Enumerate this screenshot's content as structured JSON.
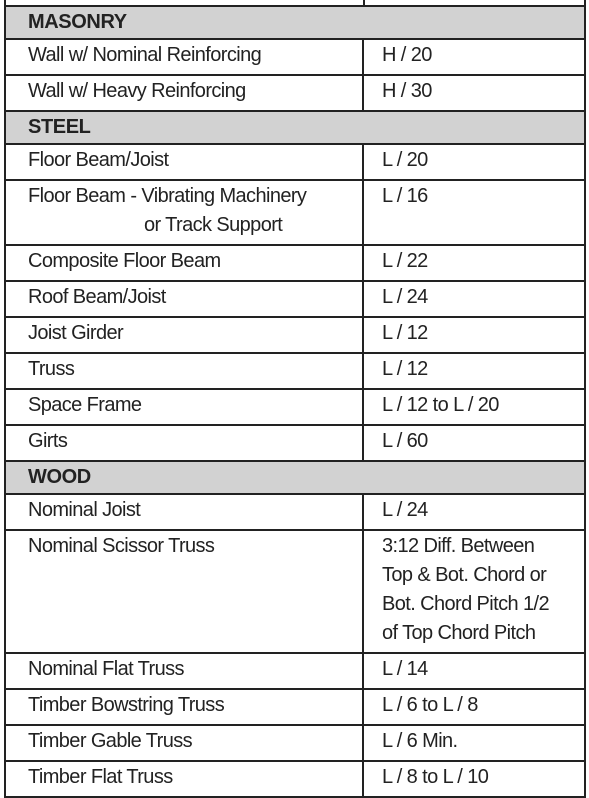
{
  "sections": [
    {
      "title": "MASONRY",
      "rows": [
        {
          "label": [
            "Wall w/ Nominal Reinforcing"
          ],
          "value": [
            "H / 20"
          ]
        },
        {
          "label": [
            "Wall w/ Heavy Reinforcing"
          ],
          "value": [
            "H / 30"
          ]
        }
      ]
    },
    {
      "title": "STEEL",
      "rows": [
        {
          "label": [
            "Floor Beam/Joist"
          ],
          "value": [
            "L / 20"
          ]
        },
        {
          "label": [
            "Floor Beam - Vibrating Machinery",
            "or Track Support"
          ],
          "value": [
            "L / 16"
          ]
        },
        {
          "label": [
            "Composite Floor Beam"
          ],
          "value": [
            "L / 22"
          ]
        },
        {
          "label": [
            "Roof Beam/Joist"
          ],
          "value": [
            "L / 24"
          ]
        },
        {
          "label": [
            "Joist Girder"
          ],
          "value": [
            "L / 12"
          ]
        },
        {
          "label": [
            "Truss"
          ],
          "value": [
            "L / 12"
          ]
        },
        {
          "label": [
            "Space Frame"
          ],
          "value": [
            "L / 12 to L / 20"
          ]
        },
        {
          "label": [
            "Girts"
          ],
          "value": [
            "L / 60"
          ]
        }
      ]
    },
    {
      "title": "WOOD",
      "rows": [
        {
          "label": [
            "Nominal Joist"
          ],
          "value": [
            "L / 24"
          ]
        },
        {
          "label": [
            "Nominal Scissor Truss"
          ],
          "value": [
            "3:12 Diff. Between",
            "Top & Bot. Chord or",
            "Bot. Chord Pitch 1/2",
            "of Top Chord Pitch"
          ]
        },
        {
          "label": [
            "Nominal Flat Truss"
          ],
          "value": [
            "L / 14"
          ]
        },
        {
          "label": [
            "Timber Bowstring Truss"
          ],
          "value": [
            "L / 6 to L / 8"
          ]
        },
        {
          "label": [
            "Timber Gable Truss"
          ],
          "value": [
            "L / 6 Min."
          ]
        },
        {
          "label": [
            "Timber Flat Truss"
          ],
          "value": [
            "L / 8 to L / 10"
          ]
        }
      ]
    }
  ]
}
